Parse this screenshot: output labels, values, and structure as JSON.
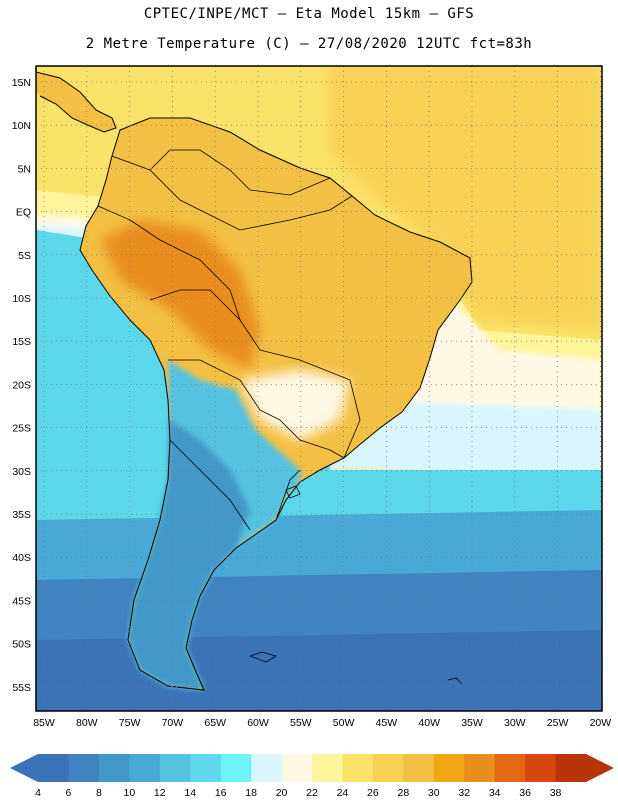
{
  "header": {
    "line1": "CPTEC/INPE/MCT –  Eta Model 15km – GFS",
    "line2": "2 Metre Temperature (C) – 27/08/2020 12UTC fct=83h"
  },
  "axes": {
    "lat_labels": [
      "15N",
      "10N",
      "5N",
      "EQ",
      "5S",
      "10S",
      "15S",
      "20S",
      "25S",
      "30S",
      "35S",
      "40S",
      "45S",
      "50S",
      "55S"
    ],
    "lon_labels": [
      "85W",
      "80W",
      "75W",
      "70W",
      "65W",
      "60W",
      "55W",
      "50W",
      "45W",
      "40W",
      "35W",
      "30W",
      "25W",
      "20W"
    ]
  },
  "colorbar": {
    "labels": [
      "4",
      "6",
      "8",
      "10",
      "12",
      "14",
      "16",
      "18",
      "20",
      "22",
      "24",
      "26",
      "28",
      "30",
      "32",
      "34",
      "36",
      "38"
    ],
    "colors": [
      "#3a74b6",
      "#3f83c0",
      "#4297c8",
      "#4aa8d6",
      "#55c2e2",
      "#5cd8ea",
      "#6cf2f7",
      "#d8f6fc",
      "#fff8e6",
      "#fff49a",
      "#fbe268",
      "#f6d154",
      "#f3c043",
      "#f0a914",
      "#e98e1c",
      "#e26813",
      "#d5470f",
      "#b8350c"
    ]
  },
  "map_colors": {
    "ocean_tropical": "#fbe268",
    "ocean_warm": "#f6d154",
    "ocean_light": "#fff49a",
    "ocean_cream": "#fff8e6",
    "ocean_pale": "#d8f6fc",
    "ocean_cyan": "#5cd8ea",
    "ocean_mid": "#4aa8d6",
    "ocean_blue": "#3f83c0",
    "ocean_deep": "#3a74b6",
    "land_orange": "#f3c043",
    "land_hot": "#e98e1c",
    "land_cool": "#55c2e2",
    "land_cold": "#4297c8"
  }
}
